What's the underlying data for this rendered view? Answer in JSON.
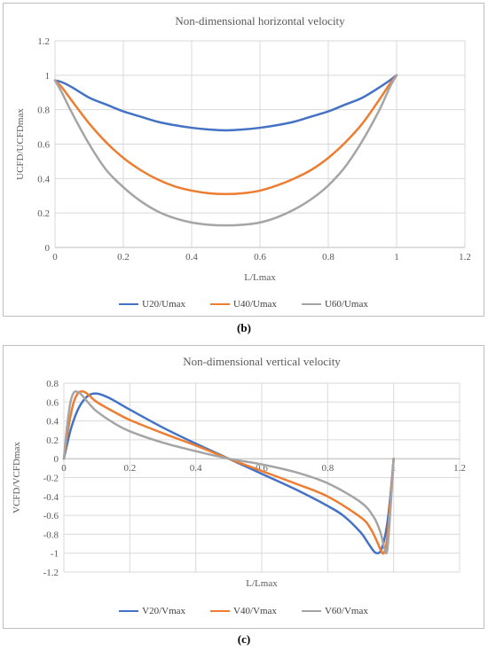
{
  "chart_data": [
    {
      "type": "line",
      "title": "Non-dimensional horizontal velocity",
      "xlabel": "L/Lmax",
      "ylabel": "UCFD/UCFDmax",
      "xlim": [
        0,
        1.2
      ],
      "ylim": [
        0,
        1.2
      ],
      "xticks": [
        "0",
        "0.2",
        "0.4",
        "0.6",
        "0.8",
        "1",
        "1.2"
      ],
      "yticks": [
        "0",
        "0.2",
        "0.4",
        "0.6",
        "0.8",
        "1",
        "1.2"
      ],
      "grid": true,
      "legend_position": "bottom",
      "series": [
        {
          "name": "U20/Umax",
          "color": "#4472C4",
          "x": [
            0,
            0.02,
            0.05,
            0.1,
            0.15,
            0.2,
            0.25,
            0.3,
            0.35,
            0.4,
            0.45,
            0.5,
            0.55,
            0.6,
            0.65,
            0.7,
            0.75,
            0.8,
            0.85,
            0.9,
            0.95,
            0.98,
            1.0
          ],
          "y": [
            0.97,
            0.96,
            0.93,
            0.87,
            0.83,
            0.79,
            0.76,
            0.73,
            0.71,
            0.695,
            0.685,
            0.68,
            0.685,
            0.695,
            0.71,
            0.73,
            0.76,
            0.79,
            0.83,
            0.87,
            0.93,
            0.97,
            1.0
          ]
        },
        {
          "name": "U40/Umax",
          "color": "#ED7D31",
          "x": [
            0,
            0.02,
            0.05,
            0.1,
            0.15,
            0.2,
            0.25,
            0.3,
            0.35,
            0.4,
            0.45,
            0.5,
            0.55,
            0.6,
            0.65,
            0.7,
            0.75,
            0.8,
            0.85,
            0.9,
            0.95,
            0.98,
            1.0
          ],
          "y": [
            0.97,
            0.93,
            0.85,
            0.72,
            0.61,
            0.52,
            0.45,
            0.395,
            0.355,
            0.33,
            0.315,
            0.31,
            0.315,
            0.33,
            0.36,
            0.4,
            0.45,
            0.52,
            0.61,
            0.72,
            0.86,
            0.95,
            1.0
          ]
        },
        {
          "name": "U60/Umax",
          "color": "#A5A5A5",
          "x": [
            0,
            0.02,
            0.05,
            0.1,
            0.15,
            0.2,
            0.25,
            0.3,
            0.35,
            0.4,
            0.45,
            0.5,
            0.55,
            0.6,
            0.65,
            0.7,
            0.75,
            0.8,
            0.85,
            0.9,
            0.95,
            0.98,
            1.0
          ],
          "y": [
            0.97,
            0.9,
            0.78,
            0.6,
            0.45,
            0.35,
            0.27,
            0.21,
            0.17,
            0.145,
            0.132,
            0.128,
            0.132,
            0.145,
            0.175,
            0.22,
            0.28,
            0.36,
            0.47,
            0.62,
            0.8,
            0.93,
            1.0
          ]
        }
      ],
      "caption": "(b)"
    },
    {
      "type": "line",
      "title": "Non-dimensional vertical velocity",
      "xlabel": "L/Lmax",
      "ylabel": "VCFD/VCFDmax",
      "xlim": [
        0,
        1.2
      ],
      "ylim": [
        -1.2,
        0.8
      ],
      "xticks": [
        "0",
        "0.2",
        "0.4",
        "0.6",
        "0.8",
        "1",
        "1.2"
      ],
      "yticks": [
        "0.8",
        "0.6",
        "0.4",
        "0.2",
        "0",
        "-0.2",
        "-0.4",
        "-0.6",
        "-0.8",
        "-1",
        "-1.2"
      ],
      "grid": true,
      "legend_position": "bottom",
      "series": [
        {
          "name": "V20/Vmax",
          "color": "#4472C4",
          "x": [
            0,
            0.02,
            0.04,
            0.06,
            0.08,
            0.1,
            0.12,
            0.15,
            0.2,
            0.3,
            0.4,
            0.5,
            0.6,
            0.7,
            0.8,
            0.85,
            0.9,
            0.92,
            0.94,
            0.95,
            0.96,
            0.97,
            0.98,
            0.99,
            1.0
          ],
          "y": [
            0,
            0.3,
            0.5,
            0.62,
            0.68,
            0.69,
            0.67,
            0.62,
            0.52,
            0.33,
            0.16,
            0,
            -0.16,
            -0.32,
            -0.5,
            -0.61,
            -0.78,
            -0.88,
            -0.98,
            -1.0,
            -0.98,
            -0.88,
            -0.7,
            -0.4,
            0
          ]
        },
        {
          "name": "V40/Vmax",
          "color": "#ED7D31",
          "x": [
            0,
            0.01,
            0.02,
            0.03,
            0.04,
            0.05,
            0.06,
            0.07,
            0.08,
            0.1,
            0.15,
            0.2,
            0.3,
            0.4,
            0.5,
            0.6,
            0.7,
            0.8,
            0.9,
            0.93,
            0.95,
            0.96,
            0.97,
            0.98,
            0.99,
            1.0
          ],
          "y": [
            0,
            0.25,
            0.45,
            0.6,
            0.68,
            0.71,
            0.71,
            0.69,
            0.66,
            0.6,
            0.5,
            0.41,
            0.27,
            0.14,
            0,
            -0.13,
            -0.26,
            -0.4,
            -0.62,
            -0.74,
            -0.88,
            -0.96,
            -1.0,
            -0.85,
            -0.45,
            0
          ]
        },
        {
          "name": "V60/Vmax",
          "color": "#A5A5A5",
          "x": [
            0,
            0.01,
            0.02,
            0.03,
            0.04,
            0.05,
            0.06,
            0.08,
            0.1,
            0.15,
            0.2,
            0.3,
            0.4,
            0.5,
            0.6,
            0.7,
            0.8,
            0.9,
            0.94,
            0.96,
            0.97,
            0.98,
            0.99,
            1.0
          ],
          "y": [
            0,
            0.35,
            0.6,
            0.7,
            0.71,
            0.69,
            0.65,
            0.57,
            0.5,
            0.38,
            0.29,
            0.17,
            0.08,
            0,
            -0.06,
            -0.14,
            -0.26,
            -0.46,
            -0.62,
            -0.78,
            -0.92,
            -0.98,
            -0.55,
            0
          ]
        }
      ],
      "caption": "(c)"
    }
  ]
}
